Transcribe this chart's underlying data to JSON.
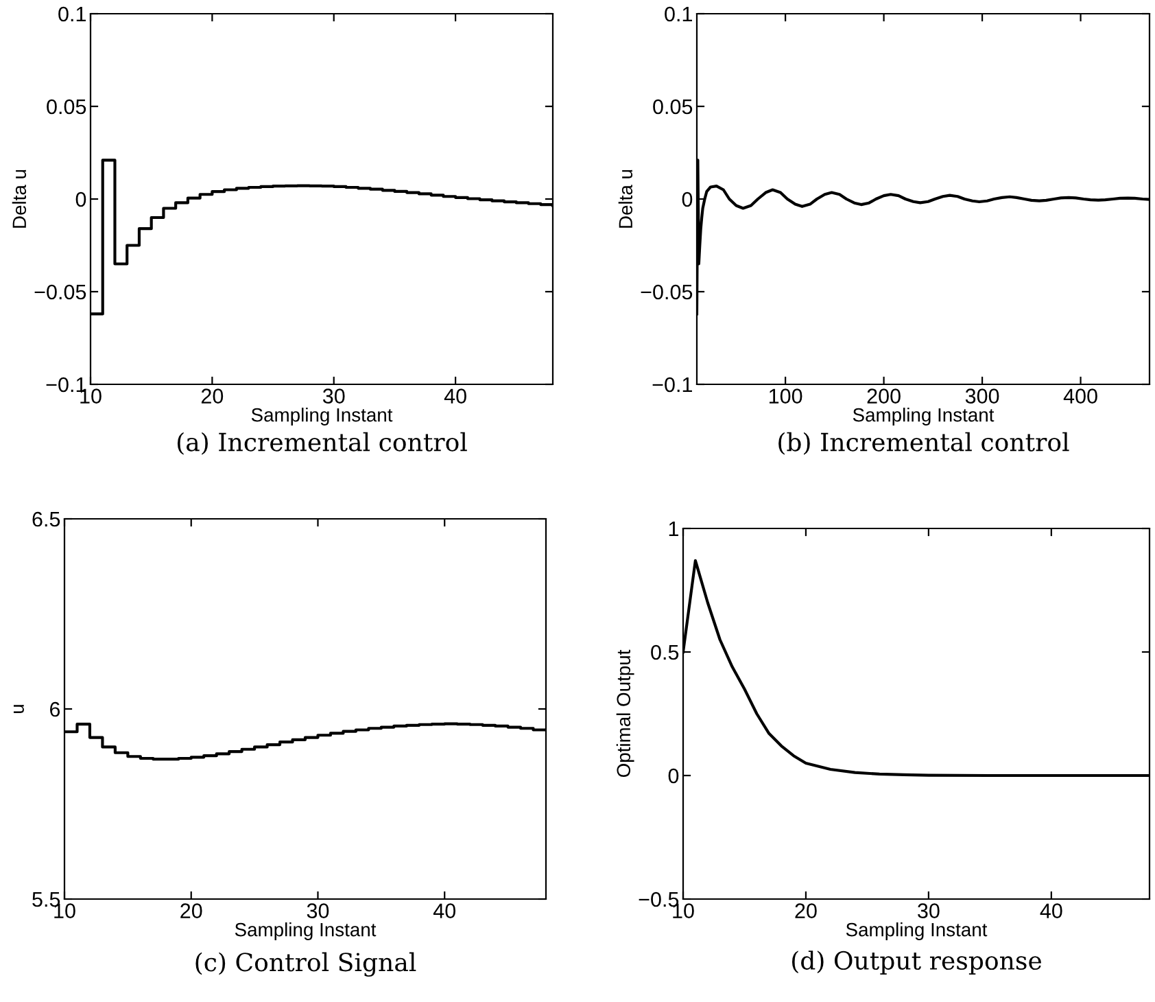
{
  "chart_data": [
    {
      "type": "step",
      "title": "(a) Incremental control",
      "xlabel": "Sampling Instant",
      "ylabel": "Delta u",
      "xlim": [
        10,
        48
      ],
      "xticks": [
        10,
        20,
        30,
        40
      ],
      "ylim": [
        -0.1,
        0.1
      ],
      "yticks": [
        -0.1,
        -0.05,
        0,
        0.05,
        0.1
      ],
      "grid": false,
      "series": [
        {
          "color": "#000000",
          "x": [
            10,
            11,
            12,
            13,
            14,
            15,
            16,
            17,
            18,
            19,
            20,
            21,
            22,
            23,
            24,
            25,
            26,
            27,
            28,
            29,
            30,
            31,
            32,
            33,
            34,
            35,
            36,
            37,
            38,
            39,
            40,
            41,
            42,
            43,
            44,
            45,
            46,
            47,
            48
          ],
          "values": [
            -0.062,
            0.021,
            -0.035,
            -0.025,
            -0.016,
            -0.01,
            -0.005,
            -0.002,
            0.0005,
            0.0025,
            0.004,
            0.005,
            0.0058,
            0.0063,
            0.0067,
            0.007,
            0.0071,
            0.0072,
            0.0071,
            0.007,
            0.0067,
            0.0063,
            0.0058,
            0.0053,
            0.0047,
            0.0041,
            0.0035,
            0.0028,
            0.0021,
            0.0014,
            0.0008,
            0.0002,
            -0.0004,
            -0.001,
            -0.0015,
            -0.002,
            -0.0025,
            -0.003,
            -0.0035
          ]
        }
      ]
    },
    {
      "type": "line",
      "title": "(b) Incremental control",
      "xlabel": "Sampling Instant",
      "ylabel": "Delta u",
      "xlim": [
        10,
        470
      ],
      "xticks": [
        100,
        200,
        300,
        400
      ],
      "ylim": [
        -0.1,
        0.1
      ],
      "yticks": [
        -0.1,
        -0.05,
        0,
        0.05,
        0.1
      ],
      "grid": false,
      "series": [
        {
          "color": "#000000",
          "x": [
            10,
            11,
            12,
            13,
            14,
            15,
            16,
            18,
            20,
            24,
            30,
            37,
            43,
            50,
            57,
            65,
            72,
            80,
            87,
            95,
            102,
            110,
            117,
            125,
            132,
            140,
            147,
            155,
            162,
            170,
            177,
            185,
            192,
            200,
            207,
            215,
            222,
            230,
            237,
            245,
            252,
            260,
            267,
            275,
            282,
            290,
            297,
            305,
            312,
            320,
            328,
            335,
            343,
            350,
            358,
            365,
            373,
            380,
            388,
            395,
            403,
            410,
            418,
            425,
            433,
            440,
            448,
            455,
            463,
            470
          ],
          "values": [
            -0.062,
            0.021,
            -0.035,
            -0.025,
            -0.016,
            -0.01,
            -0.005,
            0,
            0.004,
            0.0065,
            0.007,
            0.005,
            0,
            -0.0035,
            -0.005,
            -0.0035,
            0,
            0.0035,
            0.005,
            0.0035,
            0,
            -0.0028,
            -0.004,
            -0.0028,
            0,
            0.0025,
            0.0035,
            0.0025,
            0,
            -0.0021,
            -0.003,
            -0.0021,
            0,
            0.0018,
            0.0025,
            0.0018,
            0,
            -0.0014,
            -0.002,
            -0.0014,
            0,
            0.0014,
            0.002,
            0.0014,
            0,
            -0.001,
            -0.0015,
            -0.001,
            0,
            0.0008,
            0.0012,
            0.0008,
            0,
            -0.0007,
            -0.001,
            -0.0007,
            0,
            0.0006,
            0.0008,
            0.0006,
            0,
            -0.0004,
            -0.0006,
            -0.0004,
            0,
            0.0004,
            0.0005,
            0.0004,
            0,
            -0.0002
          ]
        }
      ]
    },
    {
      "type": "step",
      "title": "(c) Control Signal",
      "xlabel": "Sampling Instant",
      "ylabel": "u",
      "xlim": [
        10,
        48
      ],
      "xticks": [
        10,
        20,
        30,
        40
      ],
      "ylim": [
        5.5,
        6.5
      ],
      "yticks": [
        5.5,
        6,
        6.5
      ],
      "grid": false,
      "series": [
        {
          "color": "#000000",
          "x": [
            10,
            11,
            12,
            13,
            14,
            15,
            16,
            17,
            18,
            19,
            20,
            21,
            22,
            23,
            24,
            25,
            26,
            27,
            28,
            29,
            30,
            31,
            32,
            33,
            34,
            35,
            36,
            37,
            38,
            39,
            40,
            41,
            42,
            43,
            44,
            45,
            46,
            47,
            48
          ],
          "values": [
            5.94,
            5.96,
            5.925,
            5.9,
            5.885,
            5.875,
            5.87,
            5.868,
            5.868,
            5.87,
            5.873,
            5.877,
            5.882,
            5.888,
            5.894,
            5.9,
            5.906,
            5.913,
            5.919,
            5.925,
            5.931,
            5.936,
            5.941,
            5.945,
            5.949,
            5.952,
            5.955,
            5.957,
            5.959,
            5.96,
            5.961,
            5.96,
            5.959,
            5.957,
            5.955,
            5.952,
            5.949,
            5.945,
            5.945
          ]
        }
      ]
    },
    {
      "type": "line",
      "title": "(d) Output response",
      "xlabel": "Sampling Instant",
      "ylabel": "Optimal Output",
      "xlim": [
        10,
        48
      ],
      "xticks": [
        10,
        20,
        30,
        40
      ],
      "ylim": [
        -0.5,
        1
      ],
      "yticks": [
        -0.5,
        0,
        0.5,
        1
      ],
      "grid": false,
      "series": [
        {
          "color": "#000000",
          "x": [
            10,
            11,
            12,
            13,
            14,
            15,
            16,
            17,
            18,
            19,
            20,
            22,
            24,
            26,
            28,
            30,
            35,
            48
          ],
          "values": [
            0.5,
            0.87,
            0.7,
            0.55,
            0.44,
            0.35,
            0.25,
            0.17,
            0.12,
            0.08,
            0.05,
            0.025,
            0.012,
            0.006,
            0.003,
            0.001,
            0,
            0
          ]
        }
      ]
    }
  ]
}
